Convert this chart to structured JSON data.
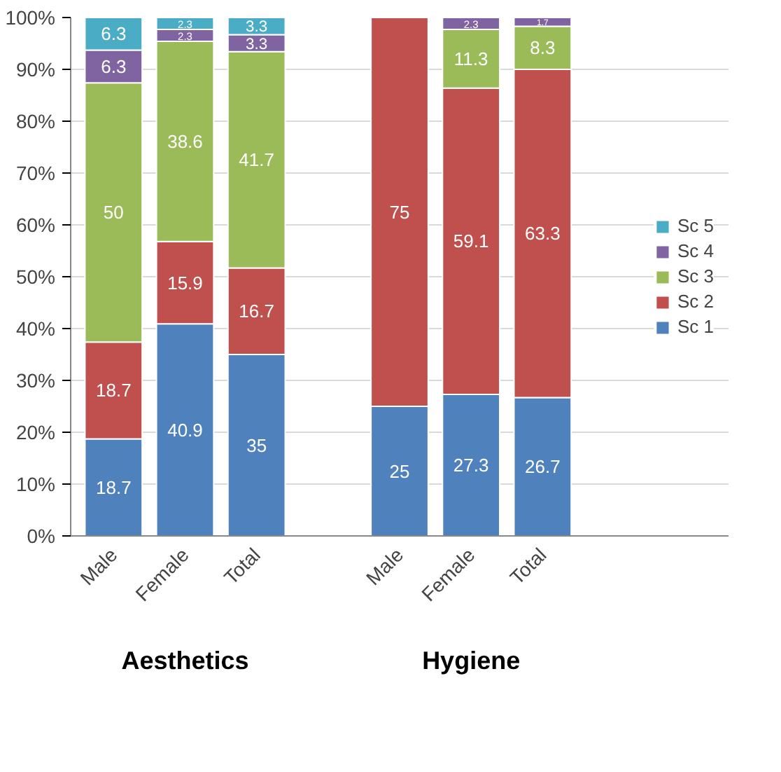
{
  "chart_data": {
    "type": "bar",
    "stacked": true,
    "categories": [
      "Male",
      "Female",
      "Total",
      null,
      "Male",
      "Female",
      "Total"
    ],
    "series": [
      {
        "name": "Sc 1",
        "color": "#4f81bd",
        "values": [
          18.7,
          40.9,
          35,
          null,
          25,
          27.3,
          26.7
        ]
      },
      {
        "name": "Sc 2",
        "color": "#c0504d",
        "values": [
          18.7,
          15.9,
          16.7,
          null,
          75,
          59.1,
          63.3
        ]
      },
      {
        "name": "Sc 3",
        "color": "#9bbb59",
        "values": [
          50,
          38.6,
          41.7,
          null,
          null,
          11.3,
          8.3
        ]
      },
      {
        "name": "Sc 4",
        "color": "#8064a2",
        "values": [
          6.3,
          2.3,
          3.3,
          null,
          null,
          2.3,
          1.7
        ]
      },
      {
        "name": "Sc 5",
        "color": "#4bacc6",
        "values": [
          6.3,
          2.3,
          3.3,
          null,
          null,
          null,
          null
        ]
      }
    ],
    "ylim": [
      0,
      100
    ],
    "yticks": [
      {
        "value": 0,
        "label": "0%"
      },
      {
        "value": 10,
        "label": "10%"
      },
      {
        "value": 20,
        "label": "20%"
      },
      {
        "value": 30,
        "label": "30%"
      },
      {
        "value": 40,
        "label": "40%"
      },
      {
        "value": 50,
        "label": "50%"
      },
      {
        "value": 60,
        "label": "60%"
      },
      {
        "value": 70,
        "label": "70%"
      },
      {
        "value": 80,
        "label": "80%"
      },
      {
        "value": 90,
        "label": "90%"
      },
      {
        "value": 100,
        "label": "100%"
      }
    ],
    "annotations": [
      "Aesthetics",
      "Hygiene"
    ],
    "data_labels": true,
    "grid": "y",
    "legend": "right"
  }
}
